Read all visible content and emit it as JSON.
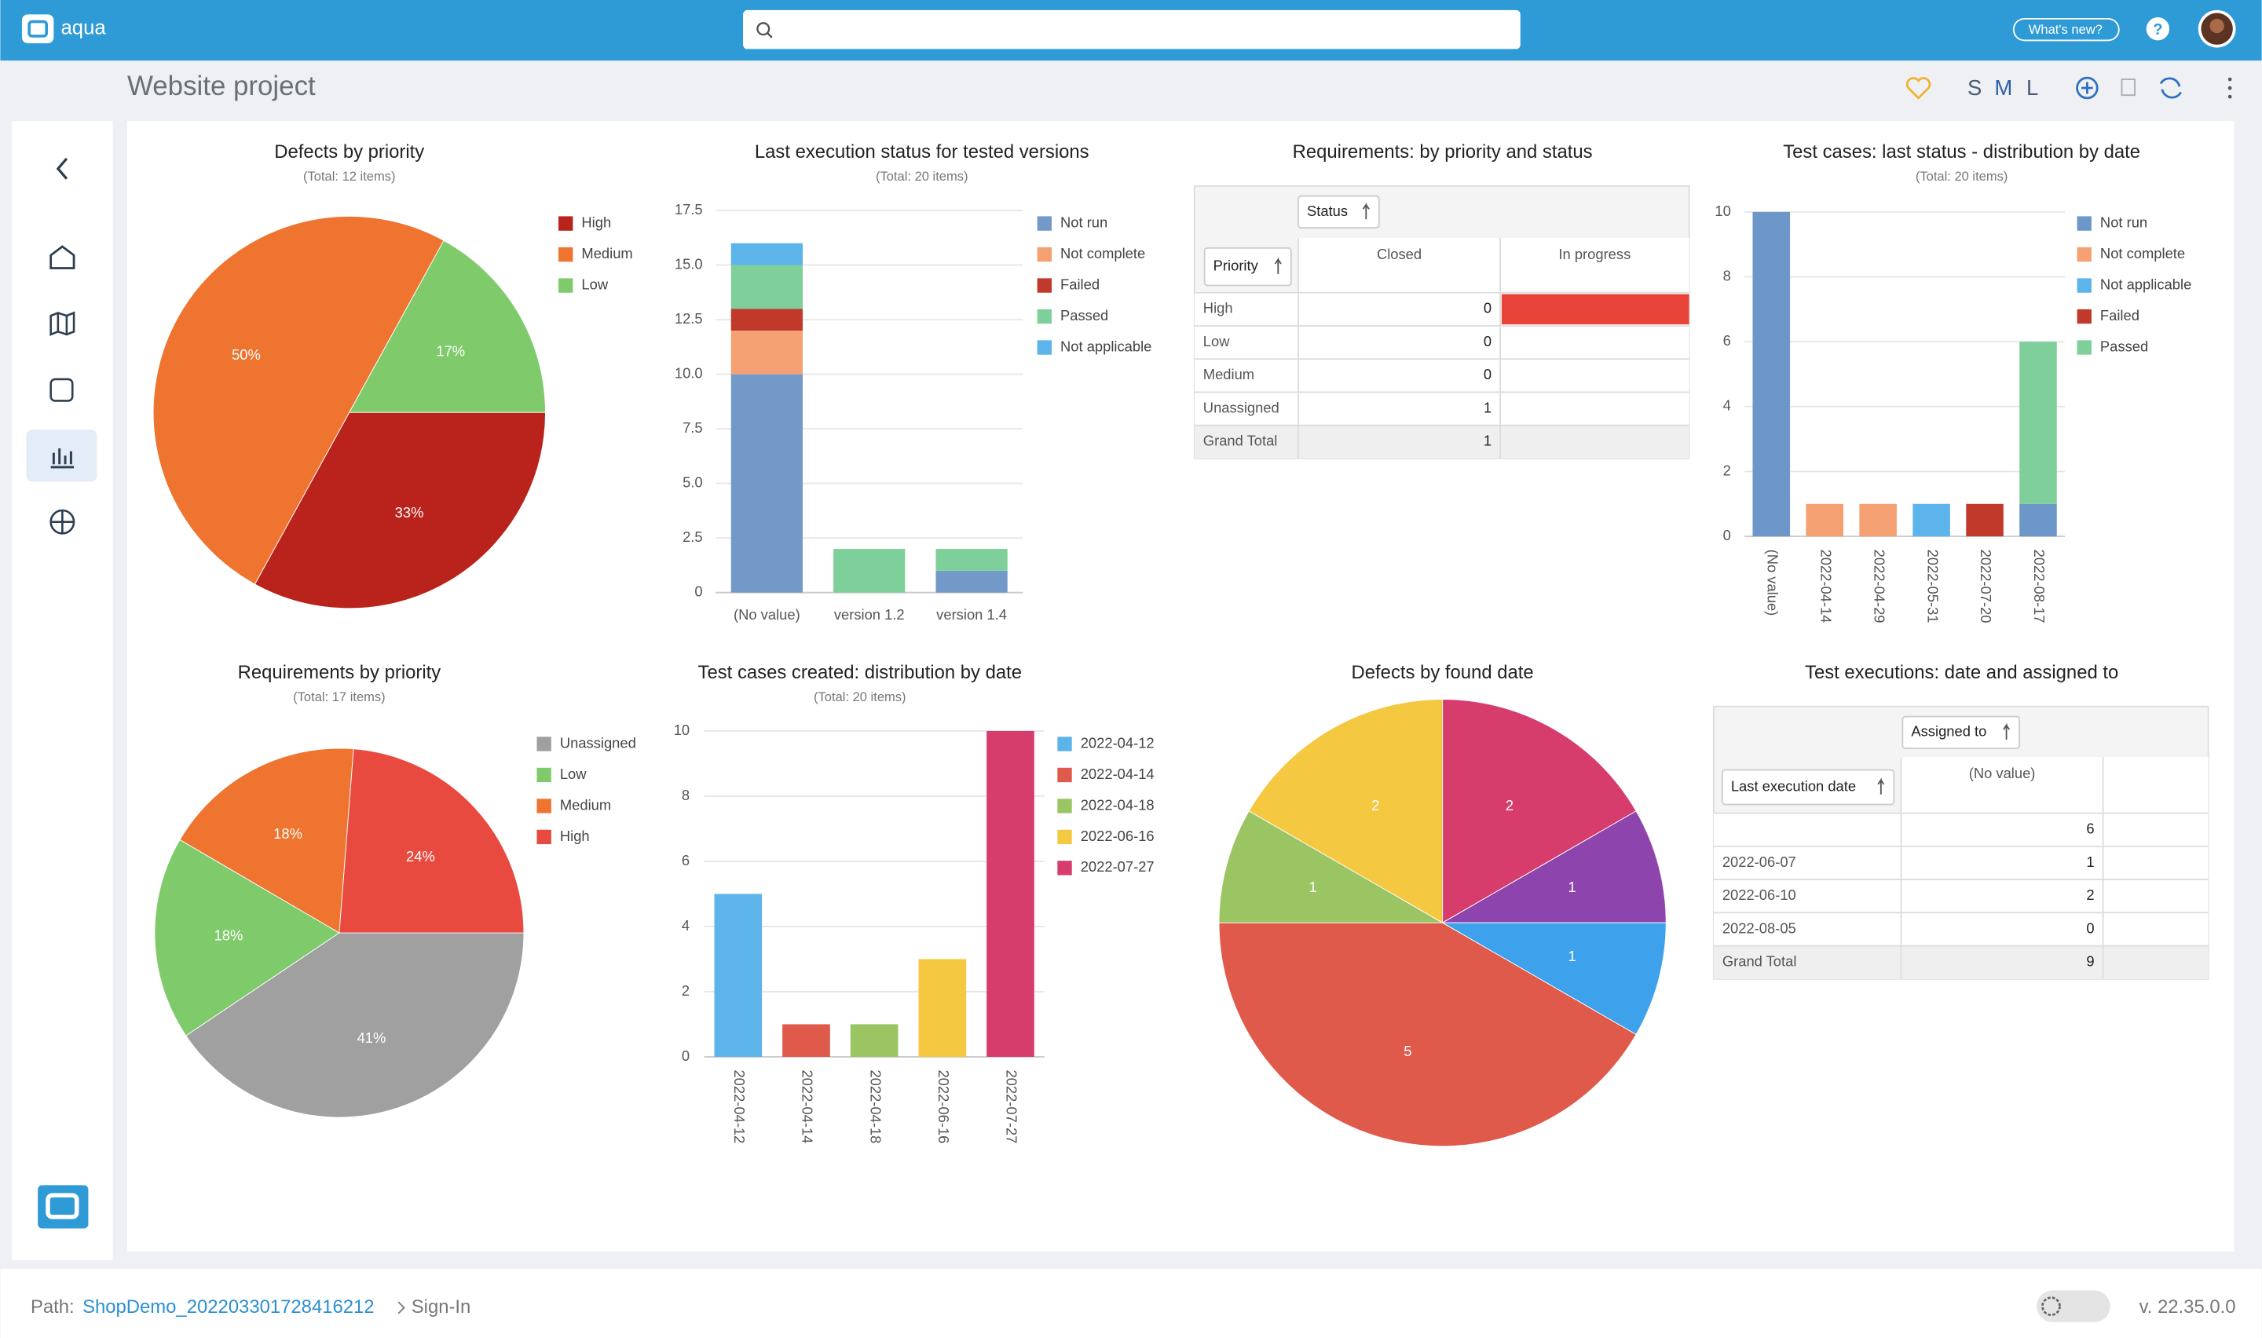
{
  "header": {
    "logo": "aqua",
    "whats_new": "What's new?",
    "help": "?"
  },
  "page": {
    "title": "Website project",
    "sizes": [
      "S",
      "M",
      "L"
    ]
  },
  "chart_data": [
    {
      "type": "pie",
      "title": "Defects by priority",
      "subtitle": "(Total: 12 items)",
      "categories": [
        "High",
        "Medium",
        "Low"
      ],
      "values": [
        33,
        50,
        17
      ],
      "value_labels": [
        "33%",
        "50%",
        "17%"
      ],
      "colors": [
        "#b9231c",
        "#ee7430",
        "#7fcb6b"
      ],
      "legend": "right"
    },
    {
      "type": "bar",
      "stacked": true,
      "title": "Last execution status for tested versions",
      "subtitle": "(Total: 20 items)",
      "categories": [
        "(No value)",
        "version 1.2",
        "version 1.4"
      ],
      "series": [
        {
          "name": "Not run",
          "color": "#7399c9",
          "values": [
            10,
            0,
            1
          ]
        },
        {
          "name": "Not complete",
          "color": "#f4a072",
          "values": [
            2,
            0,
            0
          ]
        },
        {
          "name": "Failed",
          "color": "#c0392b",
          "values": [
            1,
            0,
            0
          ]
        },
        {
          "name": "Passed",
          "color": "#7fcf9a",
          "values": [
            2,
            2,
            1
          ]
        },
        {
          "name": "Not applicable",
          "color": "#5db4ea",
          "values": [
            1,
            0,
            0
          ]
        }
      ],
      "ylim": [
        0,
        17.5
      ],
      "yticks": [
        0,
        2.5,
        {
          "value": 5,
          "label": "5.0"
        },
        7.5,
        {
          "value": 10,
          "label": "10.0"
        },
        12.5,
        {
          "value": 15,
          "label": "15.0"
        },
        17.5
      ],
      "grid": true,
      "legend": "right"
    },
    {
      "type": "bar",
      "stacked": true,
      "title": "Test cases: last status - distribution by date",
      "subtitle": "(Total: 20 items)",
      "categories": [
        "(No value)",
        "2022-04-14",
        "2022-04-29",
        "2022-05-31",
        "2022-07-20",
        "2022-08-17"
      ],
      "series": [
        {
          "name": "Not run",
          "color": "#6d97c9",
          "values": [
            10,
            0,
            0,
            0,
            0,
            1
          ]
        },
        {
          "name": "Not complete",
          "color": "#f4a072",
          "values": [
            0,
            1,
            1,
            0,
            0,
            0
          ]
        },
        {
          "name": "Not applicable",
          "color": "#5db4ea",
          "values": [
            0,
            0,
            0,
            1,
            0,
            0
          ]
        },
        {
          "name": "Failed",
          "color": "#c0392b",
          "values": [
            0,
            0,
            0,
            0,
            1,
            0
          ]
        },
        {
          "name": "Passed",
          "color": "#7fcf9a",
          "values": [
            0,
            0,
            0,
            0,
            0,
            5
          ]
        }
      ],
      "ylim": [
        0,
        10
      ],
      "yticks": [
        0,
        2,
        4,
        6,
        8,
        10
      ],
      "grid": true,
      "legend": "right"
    },
    {
      "type": "pie",
      "title": "Requirements by priority",
      "subtitle": "(Total: 17 items)",
      "categories": [
        "Unassigned",
        "Low",
        "Medium",
        "High"
      ],
      "values": [
        41,
        18,
        18,
        24
      ],
      "value_labels": [
        "41%",
        "18%",
        "18%",
        "24%"
      ],
      "colors": [
        "#a0a0a0",
        "#7fcb6b",
        "#ee7430",
        "#e84a3f"
      ],
      "legend": "right"
    },
    {
      "type": "bar",
      "title": "Test cases created: distribution by date",
      "subtitle": "(Total: 20 items)",
      "categories": [
        "2022-04-12",
        "2022-04-14",
        "2022-04-18",
        "2022-06-16",
        "2022-07-27"
      ],
      "values": [
        5,
        1,
        1,
        3,
        10
      ],
      "colors": [
        "#5db4ea",
        "#e05a4b",
        "#9bc463",
        "#f5c842",
        "#d63c6c"
      ],
      "ylim": [
        0,
        10
      ],
      "yticks": [
        0,
        2,
        4,
        6,
        8,
        10
      ],
      "grid": true,
      "legend": "right"
    },
    {
      "type": "pie",
      "title": "Defects by found date",
      "categories": [
        null,
        null,
        null,
        null,
        null,
        null
      ],
      "values": [
        2,
        1,
        1,
        5,
        1,
        2
      ],
      "colors": [
        "#d63c6c",
        "#8e44ad",
        "#3ea1ec",
        "#e05a4b",
        "#9bc463",
        "#f5c842"
      ]
    }
  ],
  "tables": [
    {
      "title": "Requirements: by priority and status",
      "column_field": "Status",
      "row_field": "Priority",
      "columns": [
        "Closed",
        "In progress"
      ],
      "rows": [
        {
          "label": "High",
          "values": [
            0
          ]
        },
        {
          "label": "Low",
          "values": [
            0
          ]
        },
        {
          "label": "Medium",
          "values": [
            0
          ]
        },
        {
          "label": "Unassigned",
          "values": [
            1
          ]
        },
        {
          "label": "Grand Total",
          "values": [
            1
          ]
        }
      ]
    },
    {
      "title": "Test executions: date and assigned to",
      "column_field": "Assigned to",
      "row_field": "Last execution date",
      "columns": [
        "(No value)"
      ],
      "rows": [
        {
          "label": null,
          "values": [
            6
          ]
        },
        {
          "label": "2022-06-07",
          "values": [
            1
          ]
        },
        {
          "label": "2022-06-10",
          "values": [
            2
          ]
        },
        {
          "label": "2022-08-05",
          "values": [
            0
          ]
        },
        {
          "label": "Grand Total",
          "values": [
            9
          ]
        }
      ]
    }
  ],
  "footer": {
    "path_label": "Path:",
    "path": "ShopDemo_202203301728416212",
    "page": "Sign-In",
    "version": "v. 22.35.0.0"
  }
}
